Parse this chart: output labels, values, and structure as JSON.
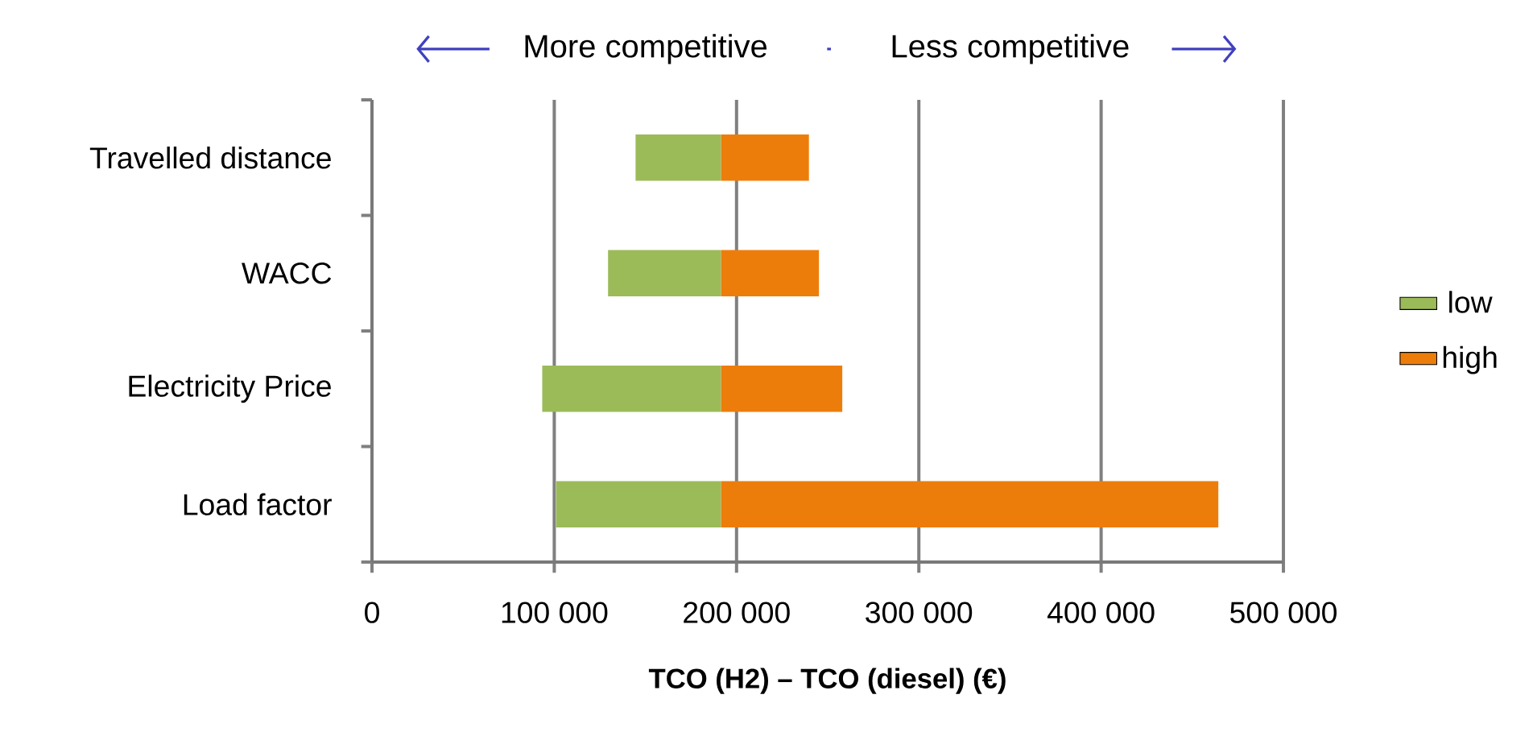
{
  "chart_data": {
    "type": "bar",
    "orientation": "horizontal",
    "categories": [
      "Travelled distance",
      "WACC",
      "Electricity Price",
      "Load factor"
    ],
    "series": [
      {
        "name": "low",
        "color": "#9bbb59",
        "base": [
          144600,
          129500,
          93400,
          101000
        ],
        "values": [
          46900,
          62000,
          98100,
          90500
        ]
      },
      {
        "name": "high",
        "color": "#ed7d0a",
        "base": [
          191500,
          191500,
          191500,
          191500
        ],
        "values": [
          48200,
          53700,
          66500,
          272800
        ]
      }
    ],
    "xlim": [
      0,
      500000
    ],
    "xticks": [
      0,
      {
        "value": 100000,
        "label": "100 000"
      },
      {
        "value": 200000,
        "label": "200 000"
      },
      {
        "value": 300000,
        "label": "300 000"
      },
      {
        "value": 400000,
        "label": "400 000"
      },
      {
        "value": 500000,
        "label": "500 000"
      }
    ],
    "xlabel": "TCO (H2) – TCO (diesel) (€)",
    "annotations": [
      "More competitive",
      "Less competitive"
    ],
    "grid": "x",
    "legend": "right"
  }
}
